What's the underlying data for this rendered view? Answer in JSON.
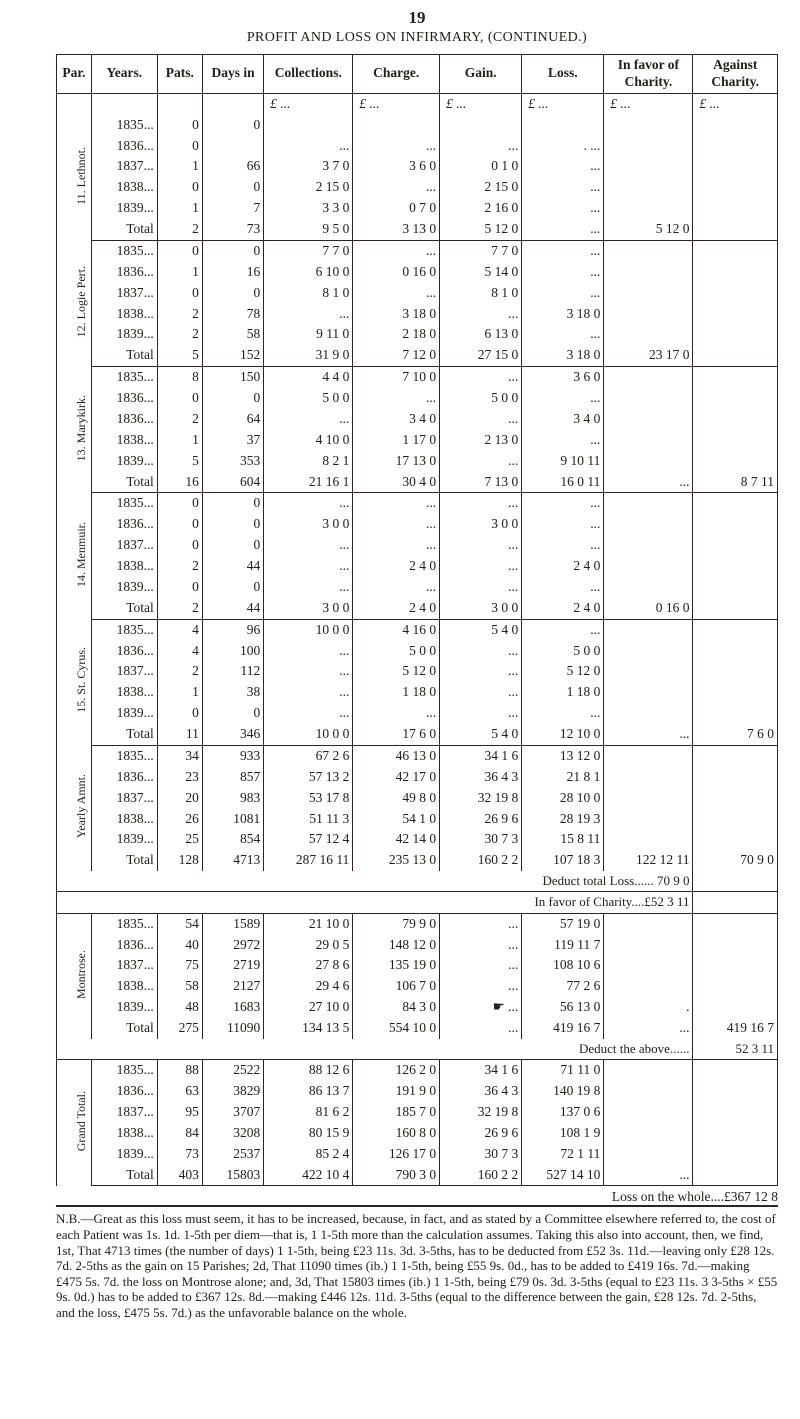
{
  "page_number": "19",
  "title": "PROFIT AND LOSS ON INFIRMARY, (CONTINUED.)",
  "columns": [
    {
      "key": "par",
      "label": "Par."
    },
    {
      "key": "years",
      "label": "Years."
    },
    {
      "key": "pats",
      "label": "Pats."
    },
    {
      "key": "days",
      "label": "Days in"
    },
    {
      "key": "coll",
      "label": "Collections."
    },
    {
      "key": "charge",
      "label": "Charge."
    },
    {
      "key": "gain",
      "label": "Gain."
    },
    {
      "key": "loss",
      "label": "Loss."
    },
    {
      "key": "favor",
      "label": "In favor of Charity."
    },
    {
      "key": "against",
      "label": "Against Charity."
    }
  ],
  "pound_row": {
    "coll": "£   ...",
    "charge": "£   ...",
    "gain": "£   ...",
    "loss": "£   ...",
    "favor": "£   ...",
    "against": "£   ..."
  },
  "panel1": {
    "groups": [
      {
        "par": "11. Lethnot.",
        "rows": [
          {
            "year": "1835...",
            "pats": "0",
            "days": "0",
            "coll": "",
            "charge": "",
            "gain": "",
            "loss": "",
            "favor": "",
            "against": ""
          },
          {
            "year": "1836...",
            "pats": "0",
            "days": "",
            "coll": "...",
            "charge": "...",
            "gain": "...",
            "loss": ". ...",
            "favor": "",
            "against": ""
          },
          {
            "year": "1837...",
            "pats": "1",
            "days": "66",
            "coll": "3  7  0",
            "charge": "3  6  0",
            "gain": "0  1  0",
            "loss": "...",
            "favor": "",
            "against": ""
          },
          {
            "year": "1838...",
            "pats": "0",
            "days": "0",
            "coll": "2 15  0",
            "charge": "...",
            "gain": "2 15  0",
            "loss": "...",
            "favor": "",
            "against": ""
          },
          {
            "year": "1839...",
            "pats": "1",
            "days": "7",
            "coll": "3  3  0",
            "charge": "0  7  0",
            "gain": "2 16  0",
            "loss": "...",
            "favor": "",
            "against": ""
          },
          {
            "year": "Total",
            "pats": "2",
            "days": "73",
            "coll": "9  5  0",
            "charge": "3 13  0",
            "gain": "5 12  0",
            "loss": "...",
            "favor": "5 12  0",
            "against": ""
          }
        ]
      },
      {
        "par": "12. Logie Pert.",
        "rows": [
          {
            "year": "1835...",
            "pats": "0",
            "days": "0",
            "coll": "7  7  0",
            "charge": "...",
            "gain": "7  7  0",
            "loss": "...",
            "favor": "",
            "against": ""
          },
          {
            "year": "1836...",
            "pats": "1",
            "days": "16",
            "coll": "6 10  0",
            "charge": "0 16  0",
            "gain": "5 14  0",
            "loss": "...",
            "favor": "",
            "against": ""
          },
          {
            "year": "1837...",
            "pats": "0",
            "days": "0",
            "coll": "8  1  0",
            "charge": "...",
            "gain": "8  1  0",
            "loss": "...",
            "favor": "",
            "against": ""
          },
          {
            "year": "1838...",
            "pats": "2",
            "days": "78",
            "coll": "...",
            "charge": "3 18  0",
            "gain": "...",
            "loss": "3 18  0",
            "favor": "",
            "against": ""
          },
          {
            "year": "1839...",
            "pats": "2",
            "days": "58",
            "coll": "9 11  0",
            "charge": "2 18  0",
            "gain": "6 13  0",
            "loss": "...",
            "favor": "",
            "against": ""
          },
          {
            "year": "Total",
            "pats": "5",
            "days": "152",
            "coll": "31  9  0",
            "charge": "7 12  0",
            "gain": "27 15  0",
            "loss": "3 18  0",
            "favor": "23 17  0",
            "against": ""
          }
        ]
      },
      {
        "par": "13. Marykirk.",
        "rows": [
          {
            "year": "1835...",
            "pats": "8",
            "days": "150",
            "coll": "4  4  0",
            "charge": "7 10  0",
            "gain": "...",
            "loss": "3  6  0",
            "favor": "",
            "against": ""
          },
          {
            "year": "1836...",
            "pats": "0",
            "days": "0",
            "coll": "5  0  0",
            "charge": "...",
            "gain": "5  0  0",
            "loss": "...",
            "favor": "",
            "against": ""
          },
          {
            "year": "1836...",
            "pats": "2",
            "days": "64",
            "coll": "...",
            "charge": "3  4  0",
            "gain": "...",
            "loss": "3  4  0",
            "favor": "",
            "against": ""
          },
          {
            "year": "1838...",
            "pats": "1",
            "days": "37",
            "coll": "4 10  0",
            "charge": "1 17  0",
            "gain": "2 13  0",
            "loss": "...",
            "favor": "",
            "against": ""
          },
          {
            "year": "1839...",
            "pats": "5",
            "days": "353",
            "coll": "8  2  1",
            "charge": "17 13  0",
            "gain": "...",
            "loss": "9 10 11",
            "favor": "",
            "against": ""
          },
          {
            "year": "Total",
            "pats": "16",
            "days": "604",
            "coll": "21 16  1",
            "charge": "30  4  0",
            "gain": "7 13  0",
            "loss": "16  0 11",
            "favor": "...",
            "against": "8  7 11"
          }
        ]
      },
      {
        "par": "14. Menmuir.",
        "rows": [
          {
            "year": "1835...",
            "pats": "0",
            "days": "0",
            "coll": "...",
            "charge": "...",
            "gain": "...",
            "loss": "...",
            "favor": "",
            "against": ""
          },
          {
            "year": "1836...",
            "pats": "0",
            "days": "0",
            "coll": "3  0  0",
            "charge": "...",
            "gain": "3  0  0",
            "loss": "...",
            "favor": "",
            "against": ""
          },
          {
            "year": "1837...",
            "pats": "0",
            "days": "0",
            "coll": "...",
            "charge": "...",
            "gain": "...",
            "loss": "...",
            "favor": "",
            "against": ""
          },
          {
            "year": "1838...",
            "pats": "2",
            "days": "44",
            "coll": "...",
            "charge": "2  4  0",
            "gain": "...",
            "loss": "2  4  0",
            "favor": "",
            "against": ""
          },
          {
            "year": "1839...",
            "pats": "0",
            "days": "0",
            "coll": "...",
            "charge": "...",
            "gain": "...",
            "loss": "...",
            "favor": "",
            "against": ""
          },
          {
            "year": "Total",
            "pats": "2",
            "days": "44",
            "coll": "3  0  0",
            "charge": "2  4  0",
            "gain": "3  0  0",
            "loss": "2  4  0",
            "favor": "0 16  0",
            "against": ""
          }
        ]
      },
      {
        "par": "15. St. Cyrus.",
        "rows": [
          {
            "year": "1835...",
            "pats": "4",
            "days": "96",
            "coll": "10  0  0",
            "charge": "4 16  0",
            "gain": "5  4  0",
            "loss": "...",
            "favor": "",
            "against": ""
          },
          {
            "year": "1836...",
            "pats": "4",
            "days": "100",
            "coll": "...",
            "charge": "5  0  0",
            "gain": "...",
            "loss": "5  0  0",
            "favor": "",
            "against": ""
          },
          {
            "year": "1837...",
            "pats": "2",
            "days": "112",
            "coll": "...",
            "charge": "5 12  0",
            "gain": "...",
            "loss": "5 12  0",
            "favor": "",
            "against": ""
          },
          {
            "year": "1838...",
            "pats": "1",
            "days": "38",
            "coll": "...",
            "charge": "1 18  0",
            "gain": "...",
            "loss": "1 18  0",
            "favor": "",
            "against": ""
          },
          {
            "year": "1839...",
            "pats": "0",
            "days": "0",
            "coll": "...",
            "charge": "...",
            "gain": "...",
            "loss": "...",
            "favor": "",
            "against": ""
          },
          {
            "year": "Total",
            "pats": "11",
            "days": "346",
            "coll": "10  0  0",
            "charge": "17  6  0",
            "gain": "5  4  0",
            "loss": "12 10  0",
            "favor": "...",
            "against": "7  6  0"
          }
        ]
      }
    ]
  },
  "panel2": {
    "par": "Yearly Amnt.",
    "rows": [
      {
        "year": "1835...",
        "pats": "34",
        "days": "933",
        "coll": "67  2  6",
        "charge": "46 13  0",
        "gain": "34  1  6",
        "loss": "13 12  0",
        "favor": "",
        "against": ""
      },
      {
        "year": "1836...",
        "pats": "23",
        "days": "857",
        "coll": "57 13  2",
        "charge": "42 17  0",
        "gain": "36  4  3",
        "loss": "21  8  1",
        "favor": "",
        "against": ""
      },
      {
        "year": "1837...",
        "pats": "20",
        "days": "983",
        "coll": "53 17  8",
        "charge": "49  8  0",
        "gain": "32 19  8",
        "loss": "28 10  0",
        "favor": "",
        "against": ""
      },
      {
        "year": "1838...",
        "pats": "26",
        "days": "1081",
        "coll": "51 11  3",
        "charge": "54  1  0",
        "gain": "26  9  6",
        "loss": "28 19  3",
        "favor": "",
        "against": ""
      },
      {
        "year": "1839...",
        "pats": "25",
        "days": "854",
        "coll": "57 12  4",
        "charge": "42 14  0",
        "gain": "30  7  3",
        "loss": "15  8 11",
        "favor": "",
        "against": ""
      },
      {
        "year": "Total",
        "pats": "128",
        "days": "4713",
        "coll": "287 16 11",
        "charge": "235 13  0",
        "gain": "160  2  2",
        "loss": "107 18  3",
        "favor": "122 12 11",
        "against": "70  9  0"
      }
    ],
    "deduct_loss": "Deduct total Loss......  70  9  0",
    "in_favor": "In favor of Charity....£52  3 11"
  },
  "panel3": {
    "par": "Montrose.",
    "rows": [
      {
        "year": "1835...",
        "pats": "54",
        "days": "1589",
        "coll": "21 10  0",
        "charge": "79  9  0",
        "gain": "...",
        "loss": "57 19  0",
        "favor": "",
        "against": ""
      },
      {
        "year": "1836...",
        "pats": "40",
        "days": "2972",
        "coll": "29  0  5",
        "charge": "148 12  0",
        "gain": "...",
        "loss": "119 11  7",
        "favor": "",
        "against": ""
      },
      {
        "year": "1837...",
        "pats": "75",
        "days": "2719",
        "coll": "27  8  6",
        "charge": "135 19  0",
        "gain": "...",
        "loss": "108 10  6",
        "favor": "",
        "against": ""
      },
      {
        "year": "1838...",
        "pats": "58",
        "days": "2127",
        "coll": "29  4  6",
        "charge": "106  7  0",
        "gain": "...",
        "loss": "77  2  6",
        "favor": "",
        "against": ""
      },
      {
        "year": "1839...",
        "pats": "48",
        "days": "1683",
        "coll": "27 10  0",
        "charge": "84  3  0",
        "gain": "☛ ...",
        "loss": "56 13  0",
        "favor": ".",
        "against": ""
      },
      {
        "year": "Total",
        "pats": "275",
        "days": "11090",
        "coll": "134 13  5",
        "charge": "554 10  0",
        "gain": "...",
        "loss": "419 16  7",
        "favor": "...",
        "against": "419 16  7"
      }
    ],
    "deduct_above": "Deduct the above......",
    "deduct_above_val": "52  3 11"
  },
  "panel4": {
    "par": "Grand Total.",
    "rows": [
      {
        "year": "1835...",
        "pats": "88",
        "days": "2522",
        "coll": "88 12  6",
        "charge": "126  2  0",
        "gain": "34  1  6",
        "loss": "71 11  0",
        "favor": "",
        "against": ""
      },
      {
        "year": "1836...",
        "pats": "63",
        "days": "3829",
        "coll": "86 13  7",
        "charge": "191  9  0",
        "gain": "36  4  3",
        "loss": "140 19  8",
        "favor": "",
        "against": ""
      },
      {
        "year": "1837...",
        "pats": "95",
        "days": "3707",
        "coll": "81  6  2",
        "charge": "185  7  0",
        "gain": "32 19  8",
        "loss": "137  0  6",
        "favor": "",
        "against": ""
      },
      {
        "year": "1838...",
        "pats": "84",
        "days": "3208",
        "coll": "80 15  9",
        "charge": "160  8  0",
        "gain": "26  9  6",
        "loss": "108  1  9",
        "favor": "",
        "against": ""
      },
      {
        "year": "1839...",
        "pats": "73",
        "days": "2537",
        "coll": "85  2  4",
        "charge": "126 17  0",
        "gain": "30  7  3",
        "loss": "72  1 11",
        "favor": "",
        "against": ""
      },
      {
        "year": "Total",
        "pats": "403",
        "days": "15803",
        "coll": "422 10  4",
        "charge": "790  3  0",
        "gain": "160  2  2",
        "loss": "527 14 10",
        "favor": "...",
        "against": ""
      }
    ]
  },
  "bottom_loss": "Loss on the whole....£367 12  8",
  "footnote": "N.B.—Great as this loss must seem, it has to be increased, because, in fact, and as stated by a Committee elsewhere referred to, the cost of each Patient was 1s. 1d. 1-5th per diem—that is, 1 1-5th more than the calculation assumes. Taking this also into account, then, we find, 1st, That 4713 times (the number of days) 1 1-5th, being £23 11s. 3d. 3-5ths, has to be deducted from £52 3s. 11d.—leaving only £28 12s. 7d. 2-5ths as the gain on 15 Parishes; 2d, That 11090 times (ib.) 1 1-5th, being £55 9s. 0d., has to be added to £419 16s. 7d.—making £475 5s. 7d. the loss on Montrose alone; and, 3d, That 15803 times (ib.) 1 1-5th, being £79 0s. 3d. 3-5ths (equal to £23 11s. 3 3-5ths × £55 9s. 0d.) has to be added to £367 12s. 8d.—making £446 12s. 11d. 3-5ths (equal to the difference between the gain, £28 12s. 7d. 2-5ths, and the loss, £475 5s. 7d.) as the unfavorable balance on the whole."
}
